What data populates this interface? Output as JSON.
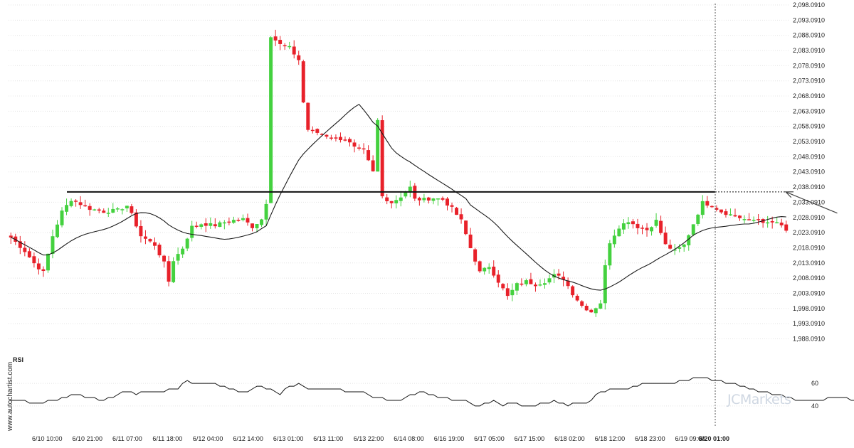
{
  "chart_data": {
    "type": "candlestick",
    "ylim": [
      1986.091,
      2098.091
    ],
    "y_ticks": [
      "2,098.0910",
      "2,093.0910",
      "2,088.0910",
      "2,083.0910",
      "2,078.0910",
      "2,073.0910",
      "2,068.0910",
      "2,063.0910",
      "2,058.0910",
      "2,053.0910",
      "2,048.0910",
      "2,043.0910",
      "2,038.0910",
      "2,033.0910",
      "2,028.0910",
      "2,023.0910",
      "2,018.0910",
      "2,013.0910",
      "2,008.0910",
      "2,003.0910",
      "1,998.0910",
      "1,993.0910",
      "1,988.0910"
    ],
    "x_labels": [
      "6/10 10:00",
      "6/10 21:00",
      "6/11 07:00",
      "6/11 18:00",
      "6/12 04:00",
      "6/12 14:00",
      "6/13 01:00",
      "6/13 11:00",
      "6/13 22:00",
      "6/14 08:00",
      "6/16 19:00",
      "6/17 05:00",
      "6/17 15:00",
      "6/18 02:00",
      "6/18 12:00",
      "6/18 23:00",
      "6/19 09:00",
      "6/20 01:00"
    ],
    "highlighted_x_label": "6/20 01:00",
    "candle_count": 168,
    "close_anchors": [
      [
        0,
        2021.5
      ],
      [
        3,
        2017
      ],
      [
        5,
        2013
      ],
      [
        7,
        2010
      ],
      [
        9,
        2022
      ],
      [
        11,
        2030
      ],
      [
        13,
        2034
      ],
      [
        17,
        2031
      ],
      [
        20,
        2030
      ],
      [
        23,
        2030.5
      ],
      [
        25,
        2032
      ],
      [
        26,
        2029
      ],
      [
        28,
        2022
      ],
      [
        31,
        2019
      ],
      [
        33,
        2013
      ],
      [
        34,
        2007
      ],
      [
        35,
        2014
      ],
      [
        37,
        2018
      ],
      [
        39,
        2025
      ],
      [
        41,
        2026
      ],
      [
        44,
        2025.5
      ],
      [
        47,
        2027
      ],
      [
        50,
        2027.5
      ],
      [
        52,
        2025
      ],
      [
        54,
        2027.5
      ],
      [
        55,
        2033
      ],
      [
        56,
        2088
      ],
      [
        58,
        2085
      ],
      [
        60,
        2084
      ],
      [
        62,
        2080
      ],
      [
        63,
        2066
      ],
      [
        64,
        2057
      ],
      [
        66,
        2056
      ],
      [
        68,
        2055
      ],
      [
        70,
        2054
      ],
      [
        72,
        2054
      ],
      [
        74,
        2051
      ],
      [
        76,
        2050
      ],
      [
        78,
        2043
      ],
      [
        79,
        2060
      ],
      [
        80,
        2035
      ],
      [
        82,
        2033
      ],
      [
        84,
        2035
      ],
      [
        86,
        2038
      ],
      [
        87,
        2034
      ],
      [
        89,
        2034
      ],
      [
        91,
        2034.5
      ],
      [
        93,
        2034
      ],
      [
        95,
        2031
      ],
      [
        97,
        2027
      ],
      [
        99,
        2018
      ],
      [
        101,
        2010
      ],
      [
        103,
        2012
      ],
      [
        105,
        2007
      ],
      [
        107,
        2002
      ],
      [
        109,
        2006
      ],
      [
        111,
        2007
      ],
      [
        113,
        2006
      ],
      [
        115,
        2007
      ],
      [
        117,
        2009
      ],
      [
        119,
        2008
      ],
      [
        121,
        2003
      ],
      [
        123,
        1999
      ],
      [
        125,
        1997
      ],
      [
        127,
        2000
      ],
      [
        128,
        2012
      ],
      [
        129,
        2020
      ],
      [
        131,
        2025
      ],
      [
        133,
        2027
      ],
      [
        135,
        2025
      ],
      [
        137,
        2024
      ],
      [
        139,
        2027
      ],
      [
        141,
        2019
      ],
      [
        143,
        2017
      ],
      [
        145,
        2019
      ],
      [
        147,
        2026
      ],
      [
        149,
        2033
      ],
      [
        151,
        2032
      ],
      [
        153,
        2030
      ],
      [
        155,
        2029
      ],
      [
        157,
        2028
      ],
      [
        159,
        2027
      ],
      [
        161,
        2027.5
      ],
      [
        163,
        2026
      ],
      [
        165,
        2026.5
      ],
      [
        167,
        2023.5
      ],
      [
        169,
        2022
      ],
      [
        171,
        2023
      ],
      [
        173,
        2024
      ],
      [
        175,
        2025
      ],
      [
        177,
        2028
      ],
      [
        178,
        2030
      ],
      [
        179,
        2034
      ],
      [
        180,
        2033
      ],
      [
        181,
        2033
      ]
    ],
    "horizontal_level": 2036.5,
    "trend_arrow": {
      "from": [
        178,
        2029.5
      ],
      "to": [
        186,
        2036.5
      ]
    },
    "rsi": {
      "label": "RSI",
      "y_ticks": [
        60,
        40
      ],
      "ylim": [
        28,
        72
      ],
      "anchors": [
        [
          0,
          46
        ],
        [
          3,
          44
        ],
        [
          6,
          42
        ],
        [
          8,
          44
        ],
        [
          12,
          48
        ],
        [
          14,
          50
        ],
        [
          17,
          47
        ],
        [
          20,
          45
        ],
        [
          22,
          48
        ],
        [
          24,
          52
        ],
        [
          27,
          51
        ],
        [
          29,
          53
        ],
        [
          33,
          53
        ],
        [
          36,
          56
        ],
        [
          38,
          62
        ],
        [
          40,
          60
        ],
        [
          44,
          60
        ],
        [
          46,
          57
        ],
        [
          48,
          54
        ],
        [
          50,
          52
        ],
        [
          52,
          55
        ],
        [
          54,
          58
        ],
        [
          56,
          54
        ],
        [
          58,
          51
        ],
        [
          60,
          57
        ],
        [
          62,
          59
        ],
        [
          64,
          56
        ],
        [
          68,
          54
        ],
        [
          70,
          55
        ],
        [
          72,
          53
        ],
        [
          76,
          52
        ],
        [
          78,
          48
        ],
        [
          80,
          47
        ],
        [
          82,
          45
        ],
        [
          84,
          46
        ],
        [
          86,
          49
        ],
        [
          88,
          53
        ],
        [
          90,
          50
        ],
        [
          93,
          47
        ],
        [
          96,
          45
        ],
        [
          98,
          44
        ],
        [
          100,
          40
        ],
        [
          102,
          42
        ],
        [
          104,
          44
        ],
        [
          106,
          41
        ],
        [
          108,
          43
        ],
        [
          111,
          40
        ],
        [
          115,
          42
        ],
        [
          117,
          44
        ],
        [
          120,
          41
        ],
        [
          124,
          42
        ],
        [
          126,
          50
        ],
        [
          128,
          53
        ],
        [
          130,
          56
        ],
        [
          133,
          56
        ],
        [
          135,
          58
        ],
        [
          137,
          60
        ],
        [
          139,
          59
        ],
        [
          142,
          59
        ],
        [
          144,
          62
        ],
        [
          146,
          63
        ],
        [
          148,
          66
        ],
        [
          150,
          64
        ],
        [
          152,
          62
        ],
        [
          156,
          59
        ],
        [
          160,
          55
        ],
        [
          162,
          52
        ],
        [
          166,
          50
        ],
        [
          168,
          47
        ],
        [
          170,
          44
        ],
        [
          172,
          46
        ],
        [
          174,
          45
        ],
        [
          176,
          47
        ],
        [
          180,
          47
        ],
        [
          182,
          44
        ],
        [
          184,
          47
        ]
      ]
    },
    "watermark": {
      "brand": "JCMarkets"
    },
    "source_text": "www.autochartist.com",
    "colors": {
      "up": "#44d13f",
      "down": "#e8212a",
      "ma": "#1a1a1a",
      "level": "#111111",
      "grid": "#e4e4e4",
      "text": "#222222"
    }
  }
}
